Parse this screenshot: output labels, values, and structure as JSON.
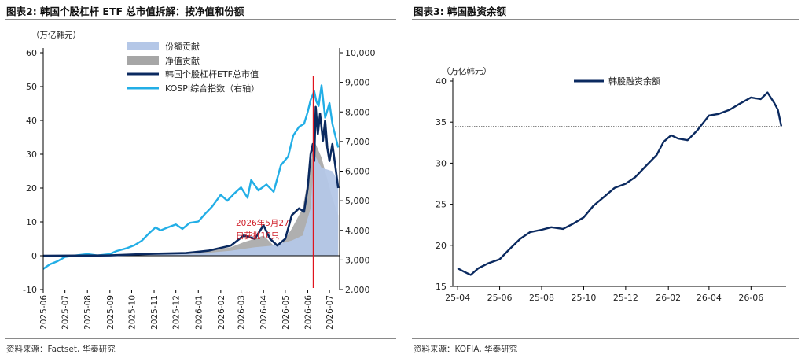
{
  "left": {
    "title": "图表2:  韩国个股杠杆 ETF 总市值拆解：按净值和份额",
    "source": "资料来源：Factset, 华泰研究"
  },
  "right": {
    "title": "图表3:  韩国融资余额",
    "source": "资料来源：KOFIA, 华泰研究"
  },
  "colors": {
    "share": "#b4c7e7",
    "nav": "#a6a6a6",
    "etf": "#0b2a60",
    "kospi": "#22aee6",
    "margin": "#0b2a60",
    "marker": "#e0141e"
  },
  "chart_data": [
    {
      "type": "area",
      "unit_label": "（万亿韩元）",
      "y_left": {
        "ticks": [
          -10,
          0,
          10,
          20,
          30,
          40,
          50,
          60
        ],
        "lim": [
          -10,
          60
        ]
      },
      "y_right": {
        "ticks": [
          "2,000",
          "3,000",
          "4,000",
          "5,000",
          "6,000",
          "7,000",
          "8,000",
          "9,000",
          "10,000"
        ],
        "lim": [
          2000,
          10000
        ]
      },
      "x_ticks": [
        "2025-06",
        "2025-07",
        "2025-08",
        "2025-09",
        "2025-10",
        "2025-11",
        "2025-12",
        "2026-01",
        "2026-02",
        "2026-03",
        "2026-04",
        "2026-05",
        "2026-06",
        "2026-07"
      ],
      "legend": [
        "份额贡献",
        "净值贡献",
        "韩国个股杠杆ETF总市值",
        "KOSPI综合指数（右轴）"
      ],
      "annotation": "2026年5月27\n日获批10只",
      "marker_date": "2026-06-09",
      "series": [
        {
          "name": "份额贡献",
          "kind": "area",
          "x": [
            "2025-06-01",
            "2025-09-01",
            "2025-11-01",
            "2026-01-01",
            "2026-02-15",
            "2026-03-20",
            "2026-04-15",
            "2026-05-10",
            "2026-05-25",
            "2026-06-05",
            "2026-06-10",
            "2026-06-20",
            "2026-07-05",
            "2026-07-13"
          ],
          "y": [
            0,
            0,
            0.3,
            0.6,
            1.5,
            2.5,
            3,
            4.5,
            6,
            14,
            30,
            26,
            25,
            22
          ]
        },
        {
          "name": "净值贡献",
          "kind": "area",
          "x": [
            "2025-06-01",
            "2025-09-01",
            "2025-11-01",
            "2026-01-01",
            "2026-02-15",
            "2026-03-05",
            "2026-03-20",
            "2026-04-01",
            "2026-04-15",
            "2026-04-25",
            "2026-05-10",
            "2026-05-25",
            "2026-06-05",
            "2026-06-10",
            "2026-06-20",
            "2026-07-05",
            "2026-07-13"
          ],
          "y": [
            0,
            0,
            0.5,
            1,
            2.5,
            4,
            5,
            6,
            3,
            3,
            8,
            14,
            27,
            34,
            29,
            17,
            12
          ]
        },
        {
          "name": "韩国个股杠杆ETF总市值",
          "kind": "line",
          "x": [
            "2025-06-01",
            "2025-09-01",
            "2025-11-01",
            "2025-12-15",
            "2026-01-15",
            "2026-02-15",
            "2026-03-05",
            "2026-03-20",
            "2026-04-01",
            "2026-04-10",
            "2026-04-20",
            "2026-05-01",
            "2026-05-10",
            "2026-05-20",
            "2026-05-27",
            "2026-06-01",
            "2026-06-05",
            "2026-06-08",
            "2026-06-10",
            "2026-06-12",
            "2026-06-15",
            "2026-06-18",
            "2026-06-22",
            "2026-06-25",
            "2026-06-28",
            "2026-07-01",
            "2026-07-05",
            "2026-07-10",
            "2026-07-13"
          ],
          "y": [
            0,
            0.1,
            0.6,
            0.8,
            1.5,
            3,
            6,
            5,
            9,
            5,
            3,
            5,
            12,
            14,
            13,
            20,
            30,
            33,
            28,
            44,
            36,
            42,
            34,
            40,
            32,
            28,
            33,
            25,
            20
          ]
        },
        {
          "name": "KOSPI综合指数（右轴）",
          "kind": "line",
          "axis": "right",
          "x": [
            "2025-06-01",
            "2025-06-10",
            "2025-06-20",
            "2025-07-01",
            "2025-07-15",
            "2025-08-01",
            "2025-08-15",
            "2025-09-01",
            "2025-09-10",
            "2025-09-25",
            "2025-10-05",
            "2025-10-15",
            "2025-10-25",
            "2025-11-03",
            "2025-11-10",
            "2025-11-20",
            "2025-12-01",
            "2025-12-10",
            "2025-12-20",
            "2026-01-01",
            "2026-01-10",
            "2026-01-20",
            "2026-02-01",
            "2026-02-10",
            "2026-02-20",
            "2026-03-01",
            "2026-03-10",
            "2026-03-15",
            "2026-03-25",
            "2026-04-05",
            "2026-04-15",
            "2026-04-25",
            "2026-05-05",
            "2026-05-12",
            "2026-05-20",
            "2026-05-27",
            "2026-06-01",
            "2026-06-05",
            "2026-06-10",
            "2026-06-13",
            "2026-06-16",
            "2026-06-20",
            "2026-06-25",
            "2026-07-01",
            "2026-07-05",
            "2026-07-10",
            "2026-07-13"
          ],
          "y": [
            2700,
            2850,
            2950,
            3100,
            3150,
            3200,
            3150,
            3200,
            3300,
            3400,
            3500,
            3650,
            3900,
            4100,
            4000,
            4100,
            4200,
            4050,
            4250,
            4300,
            4550,
            4800,
            5200,
            5000,
            5250,
            5450,
            5100,
            5700,
            5350,
            5550,
            5300,
            6200,
            6500,
            7200,
            7500,
            7600,
            8000,
            8400,
            8700,
            8350,
            8200,
            8900,
            7800,
            8300,
            7600,
            7100,
            6800
          ]
        }
      ]
    },
    {
      "type": "line",
      "unit_label": "（万亿韩元）",
      "y_ticks": [
        15,
        20,
        25,
        30,
        35,
        40
      ],
      "ylim": [
        15,
        40
      ],
      "x_ticks": [
        "25-04",
        "25-06",
        "25-08",
        "25-10",
        "25-12",
        "26-02",
        "26-04",
        "26-06"
      ],
      "reference_line": 34.5,
      "series": [
        {
          "name": "韩股融资余额",
          "x": [
            "2025-04-01",
            "2025-04-10",
            "2025-04-20",
            "2025-05-01",
            "2025-05-15",
            "2025-06-01",
            "2025-06-15",
            "2025-07-01",
            "2025-07-15",
            "2025-08-01",
            "2025-08-15",
            "2025-09-01",
            "2025-09-15",
            "2025-10-01",
            "2025-10-15",
            "2025-11-01",
            "2025-11-15",
            "2025-12-01",
            "2025-12-15",
            "2026-01-01",
            "2026-01-15",
            "2026-01-25",
            "2026-02-05",
            "2026-02-15",
            "2026-03-01",
            "2026-03-15",
            "2026-04-01",
            "2026-04-15",
            "2026-05-01",
            "2026-05-15",
            "2026-06-01",
            "2026-06-15",
            "2026-06-25",
            "2026-07-05",
            "2026-07-10",
            "2026-07-15"
          ],
          "y": [
            17.2,
            16.8,
            16.4,
            17.2,
            17.8,
            18.3,
            19.5,
            20.8,
            21.6,
            21.9,
            22.2,
            22.0,
            22.6,
            23.4,
            24.8,
            26.0,
            27.0,
            27.5,
            28.3,
            29.8,
            31.0,
            32.6,
            33.4,
            33.0,
            32.8,
            34.0,
            35.8,
            36.0,
            36.5,
            37.2,
            38.0,
            37.8,
            38.6,
            37.3,
            36.5,
            34.5
          ]
        }
      ]
    }
  ]
}
